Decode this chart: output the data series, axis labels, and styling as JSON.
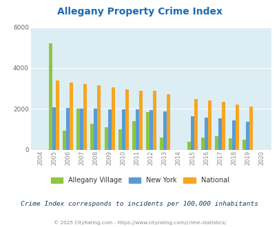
{
  "title": "Allegany Property Crime Index",
  "years": [
    2004,
    2005,
    2006,
    2007,
    2008,
    2009,
    2010,
    2011,
    2012,
    2013,
    2014,
    2015,
    2016,
    2017,
    2018,
    2019,
    2020
  ],
  "allegany_village": [
    0,
    5200,
    950,
    2000,
    1280,
    1100,
    1000,
    1420,
    1850,
    600,
    0,
    400,
    600,
    680,
    580,
    500,
    0
  ],
  "new_york": [
    0,
    2080,
    2050,
    2020,
    2030,
    1980,
    1980,
    1980,
    1960,
    1880,
    0,
    1640,
    1580,
    1530,
    1440,
    1370,
    0
  ],
  "national": [
    0,
    3380,
    3280,
    3230,
    3160,
    3050,
    2960,
    2900,
    2880,
    2730,
    0,
    2470,
    2420,
    2350,
    2200,
    2100,
    0
  ],
  "allegany_color": "#8dc63f",
  "newyork_color": "#5b9bd5",
  "national_color": "#f5a623",
  "bg_color": "#ddedf4",
  "ylabel_max": 6000,
  "yticks": [
    0,
    2000,
    4000,
    6000
  ],
  "subtitle": "Crime Index corresponds to incidents per 100,000 inhabitants",
  "footer": "© 2025 CityRating.com - https://www.cityrating.com/crime-statistics/",
  "title_color": "#1a6bb5",
  "subtitle_color": "#1a3a5c",
  "footer_color": "#888888",
  "footer_link_color": "#4da6e8",
  "bar_width": 0.25
}
